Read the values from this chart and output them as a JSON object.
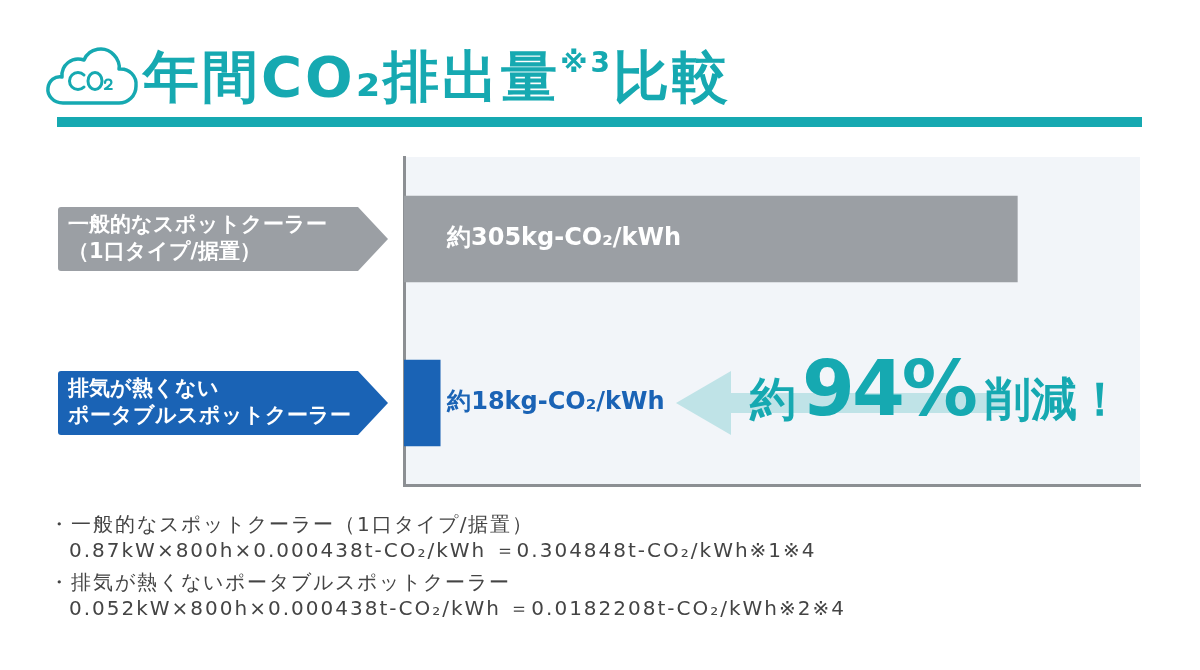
{
  "chart_data": {
    "type": "bar",
    "orientation": "horizontal",
    "title": "年間CO₂排出量$^{※3}$比較",
    "categories": [
      "一般的なスポットクーラー（1口タイプ/据置）",
      "排気が熱くないポータブルスポットクーラー"
    ],
    "values": [
      305,
      18
    ],
    "colors": [
      "#9b9fa4",
      "#1a63b5"
    ],
    "value_labels": [
      "約305kg-CO₂/kWh",
      "約18kg-CO₂/kWh"
    ],
    "annotations": [
      "約94%削減！",
      "・一般的なスポットクーラー（1口タイプ/据置）\n0.87kW×800h×0.000438t-CO₂/kWh ＝0.304848t-CO₂/kWh※1※4",
      "・排気が熱くないポータブルスポットクーラー\n0.052kW×800h×0.000438t-CO₂/kWh ＝0.0182208t-CO₂/kWh※2※4"
    ]
  }
}
